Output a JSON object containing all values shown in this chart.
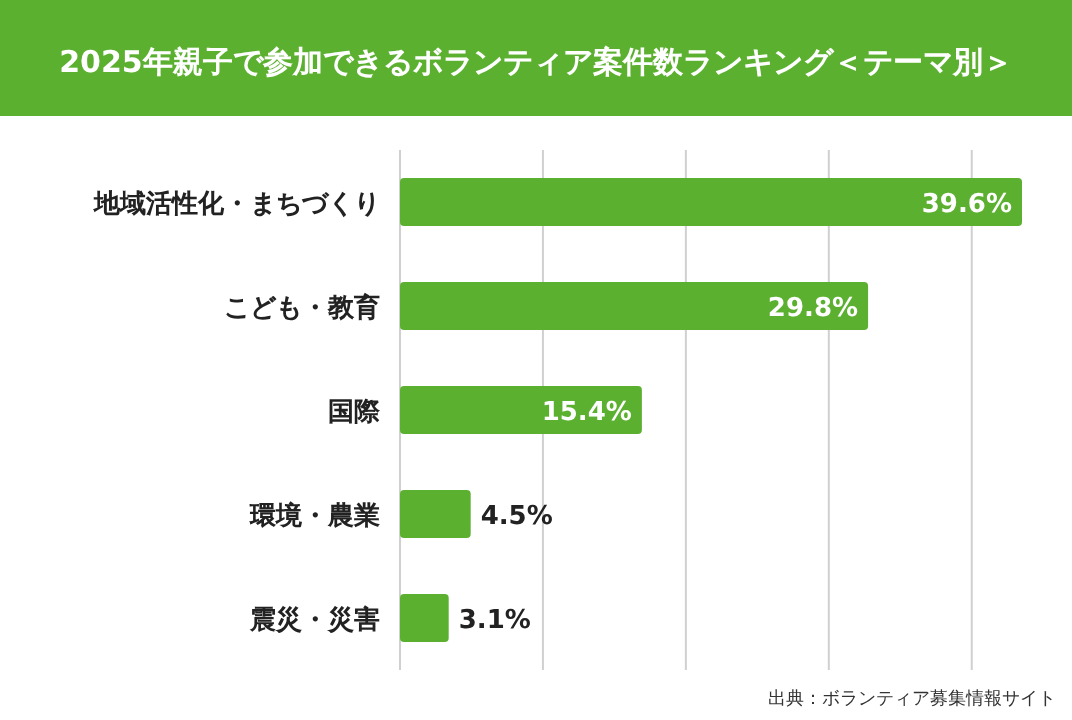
{
  "chart_data": {
    "type": "bar",
    "orientation": "horizontal",
    "title": "2025年親子で参加できるボランティア案件数ランキング＜テーマ別＞",
    "categories": [
      "地域活性化・まちづくり",
      "こども・教育",
      "国際",
      "環境・農業",
      "震災・災害"
    ],
    "values": [
      39.6,
      29.8,
      15.4,
      4.5,
      3.1
    ],
    "value_labels": [
      "39.6%",
      "29.8%",
      "15.4%",
      "4.5%",
      "3.1%"
    ],
    "color": "#5cb030",
    "xticks": [
      {
        "value": 9.1,
        "label": null
      },
      {
        "value": 18.2,
        "label": null
      },
      {
        "value": 27.3,
        "label": null
      },
      {
        "value": 36.4,
        "label": null
      }
    ],
    "grid": "x",
    "annotations": [
      "出典：ボランティア募集情報サイト"
    ]
  }
}
